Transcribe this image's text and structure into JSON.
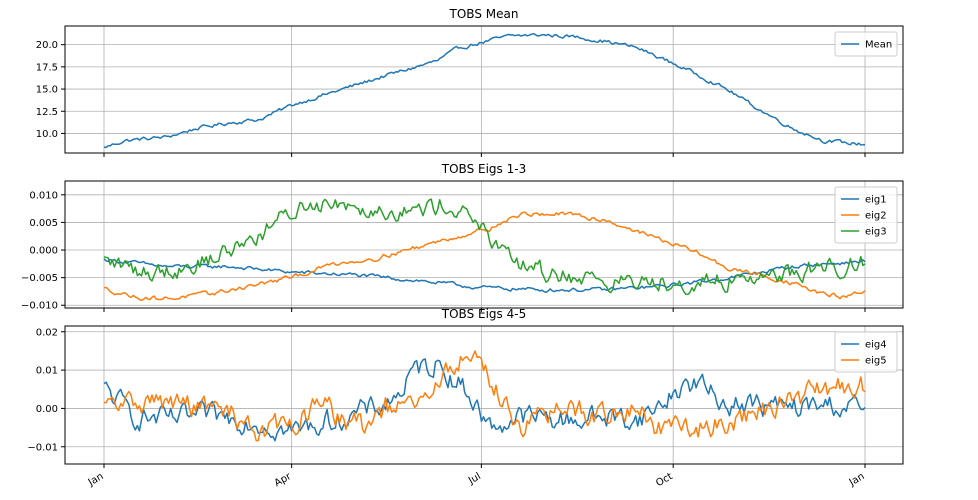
{
  "chart_data": [
    {
      "type": "line",
      "title": "TOBS Mean",
      "xlabel": "",
      "ylabel": "",
      "x_domain": [
        "Jan",
        "Jan"
      ],
      "x_ticks": [
        "Jan",
        "Apr",
        "Jul",
        "Oct",
        "Jan"
      ],
      "show_x_ticklabels": false,
      "ylim": [
        7.8,
        22.1
      ],
      "y_ticks": [
        10.0,
        12.5,
        15.0,
        17.5,
        20.0
      ],
      "y_ticklabels": [
        "10.0",
        "12.5",
        "15.0",
        "17.5",
        "20.0"
      ],
      "grid": true,
      "legend": "top-right",
      "series": [
        {
          "name": "Mean",
          "color": "#1f77b4",
          "noise": 0.18,
          "keypoints": [
            [
              0,
              8.4
            ],
            [
              10,
              9.2
            ],
            [
              30,
              9.6
            ],
            [
              45,
              10.6
            ],
            [
              60,
              11.2
            ],
            [
              75,
              11.6
            ],
            [
              90,
              13.2
            ],
            [
              105,
              14.3
            ],
            [
              120,
              15.4
            ],
            [
              135,
              16.5
            ],
            [
              150,
              17.5
            ],
            [
              160,
              18.2
            ],
            [
              170,
              19.6
            ],
            [
              182,
              20.3
            ],
            [
              195,
              21.0
            ],
            [
              210,
              21.1
            ],
            [
              225,
              20.9
            ],
            [
              240,
              20.4
            ],
            [
              255,
              19.7
            ],
            [
              270,
              18.2
            ],
            [
              285,
              16.6
            ],
            [
              300,
              14.8
            ],
            [
              315,
              12.6
            ],
            [
              330,
              10.6
            ],
            [
              345,
              9.2
            ],
            [
              357,
              8.9
            ],
            [
              365,
              8.8
            ]
          ]
        }
      ]
    },
    {
      "type": "line",
      "title": "TOBS Eigs 1-3",
      "xlabel": "",
      "ylabel": "",
      "x_domain": [
        "Jan",
        "Jan"
      ],
      "x_ticks": [
        "Jan",
        "Apr",
        "Jul",
        "Oct",
        "Jan"
      ],
      "show_x_ticklabels": false,
      "ylim": [
        -0.0105,
        0.0125
      ],
      "y_ticks": [
        -0.01,
        -0.005,
        0.0,
        0.005,
        0.01
      ],
      "y_ticklabels": [
        "−0.010",
        "−0.005",
        "0.000",
        "0.005",
        "0.010"
      ],
      "grid": true,
      "legend": "top-right",
      "series": [
        {
          "name": "eig1",
          "color": "#1f77b4",
          "noise": 0.0003,
          "keypoints": [
            [
              0,
              -0.0017
            ],
            [
              30,
              -0.003
            ],
            [
              60,
              -0.003
            ],
            [
              90,
              -0.004
            ],
            [
              120,
              -0.0045
            ],
            [
              150,
              -0.0055
            ],
            [
              180,
              -0.0068
            ],
            [
              210,
              -0.0072
            ],
            [
              240,
              -0.0072
            ],
            [
              270,
              -0.0065
            ],
            [
              300,
              -0.005
            ],
            [
              330,
              -0.003
            ],
            [
              365,
              -0.002
            ]
          ]
        },
        {
          "name": "eig2",
          "color": "#ff7f0e",
          "noise": 0.00035,
          "keypoints": [
            [
              0,
              -0.007
            ],
            [
              15,
              -0.0085
            ],
            [
              30,
              -0.0088
            ],
            [
              50,
              -0.008
            ],
            [
              70,
              -0.0065
            ],
            [
              90,
              -0.005
            ],
            [
              110,
              -0.0025
            ],
            [
              130,
              -0.0015
            ],
            [
              150,
              0.0005
            ],
            [
              170,
              0.0025
            ],
            [
              185,
              0.004
            ],
            [
              200,
              0.0065
            ],
            [
              220,
              0.0065
            ],
            [
              240,
              0.0055
            ],
            [
              255,
              0.0035
            ],
            [
              270,
              0.0015
            ],
            [
              285,
              -0.0005
            ],
            [
              300,
              -0.0035
            ],
            [
              315,
              -0.0045
            ],
            [
              330,
              -0.006
            ],
            [
              345,
              -0.008
            ],
            [
              355,
              -0.0085
            ],
            [
              365,
              -0.0075
            ]
          ]
        },
        {
          "name": "eig3",
          "color": "#2ca02c",
          "noise": 0.0014,
          "keypoints": [
            [
              0,
              -0.002
            ],
            [
              20,
              -0.004
            ],
            [
              40,
              -0.003
            ],
            [
              55,
              -0.001
            ],
            [
              75,
              0.003
            ],
            [
              95,
              0.008
            ],
            [
              110,
              0.009
            ],
            [
              130,
              0.0075
            ],
            [
              150,
              0.007
            ],
            [
              165,
              0.0085
            ],
            [
              180,
              0.005
            ],
            [
              190,
              -0.001
            ],
            [
              210,
              -0.004
            ],
            [
              230,
              -0.005
            ],
            [
              250,
              -0.006
            ],
            [
              270,
              -0.0055
            ],
            [
              290,
              -0.006
            ],
            [
              310,
              -0.005
            ],
            [
              330,
              -0.004
            ],
            [
              350,
              -0.003
            ],
            [
              365,
              -0.002
            ]
          ]
        }
      ]
    },
    {
      "type": "line",
      "title": "TOBS Eigs 4-5",
      "xlabel": "",
      "ylabel": "",
      "x_domain": [
        "Jan",
        "Jan"
      ],
      "x_ticks": [
        "Jan",
        "Apr",
        "Jul",
        "Oct",
        "Jan"
      ],
      "show_x_ticklabels": true,
      "ylim": [
        -0.0145,
        0.0215
      ],
      "y_ticks": [
        -0.01,
        0.0,
        0.01,
        0.02
      ],
      "y_ticklabels": [
        "−0.01",
        "0.00",
        "0.01",
        "0.02"
      ],
      "grid": true,
      "legend": "top-right",
      "series": [
        {
          "name": "eig4",
          "color": "#1f77b4",
          "noise": 0.0025,
          "keypoints": [
            [
              0,
              0.005
            ],
            [
              15,
              -0.002
            ],
            [
              30,
              -0.003
            ],
            [
              50,
              -0.002
            ],
            [
              70,
              -0.003
            ],
            [
              90,
              -0.006
            ],
            [
              110,
              -0.003
            ],
            [
              130,
              0.0
            ],
            [
              140,
              0.003
            ],
            [
              150,
              0.01
            ],
            [
              160,
              0.012
            ],
            [
              175,
              0.004
            ],
            [
              185,
              -0.005
            ],
            [
              200,
              -0.002
            ],
            [
              220,
              -0.003
            ],
            [
              240,
              -0.002
            ],
            [
              255,
              -0.003
            ],
            [
              265,
              0.0
            ],
            [
              275,
              0.005
            ],
            [
              285,
              0.007
            ],
            [
              295,
              0.002
            ],
            [
              310,
              0.001
            ],
            [
              330,
              0.0
            ],
            [
              350,
              0.001
            ],
            [
              365,
              0.0
            ]
          ]
        },
        {
          "name": "eig5",
          "color": "#ff7f0e",
          "noise": 0.0025,
          "keypoints": [
            [
              0,
              0.0
            ],
            [
              20,
              0.002
            ],
            [
              40,
              0.001
            ],
            [
              60,
              -0.001
            ],
            [
              75,
              -0.006
            ],
            [
              90,
              -0.004
            ],
            [
              105,
              0.001
            ],
            [
              115,
              -0.003
            ],
            [
              125,
              -0.005
            ],
            [
              135,
              0.0
            ],
            [
              150,
              0.0
            ],
            [
              160,
              0.006
            ],
            [
              170,
              0.013
            ],
            [
              180,
              0.013
            ],
            [
              190,
              0.003
            ],
            [
              200,
              -0.004
            ],
            [
              210,
              -0.003
            ],
            [
              220,
              0.0
            ],
            [
              240,
              -0.002
            ],
            [
              255,
              0.0
            ],
            [
              265,
              -0.005
            ],
            [
              280,
              -0.006
            ],
            [
              300,
              -0.003
            ],
            [
              320,
              0.0
            ],
            [
              340,
              0.004
            ],
            [
              355,
              0.006
            ],
            [
              365,
              0.006
            ]
          ]
        }
      ]
    }
  ]
}
